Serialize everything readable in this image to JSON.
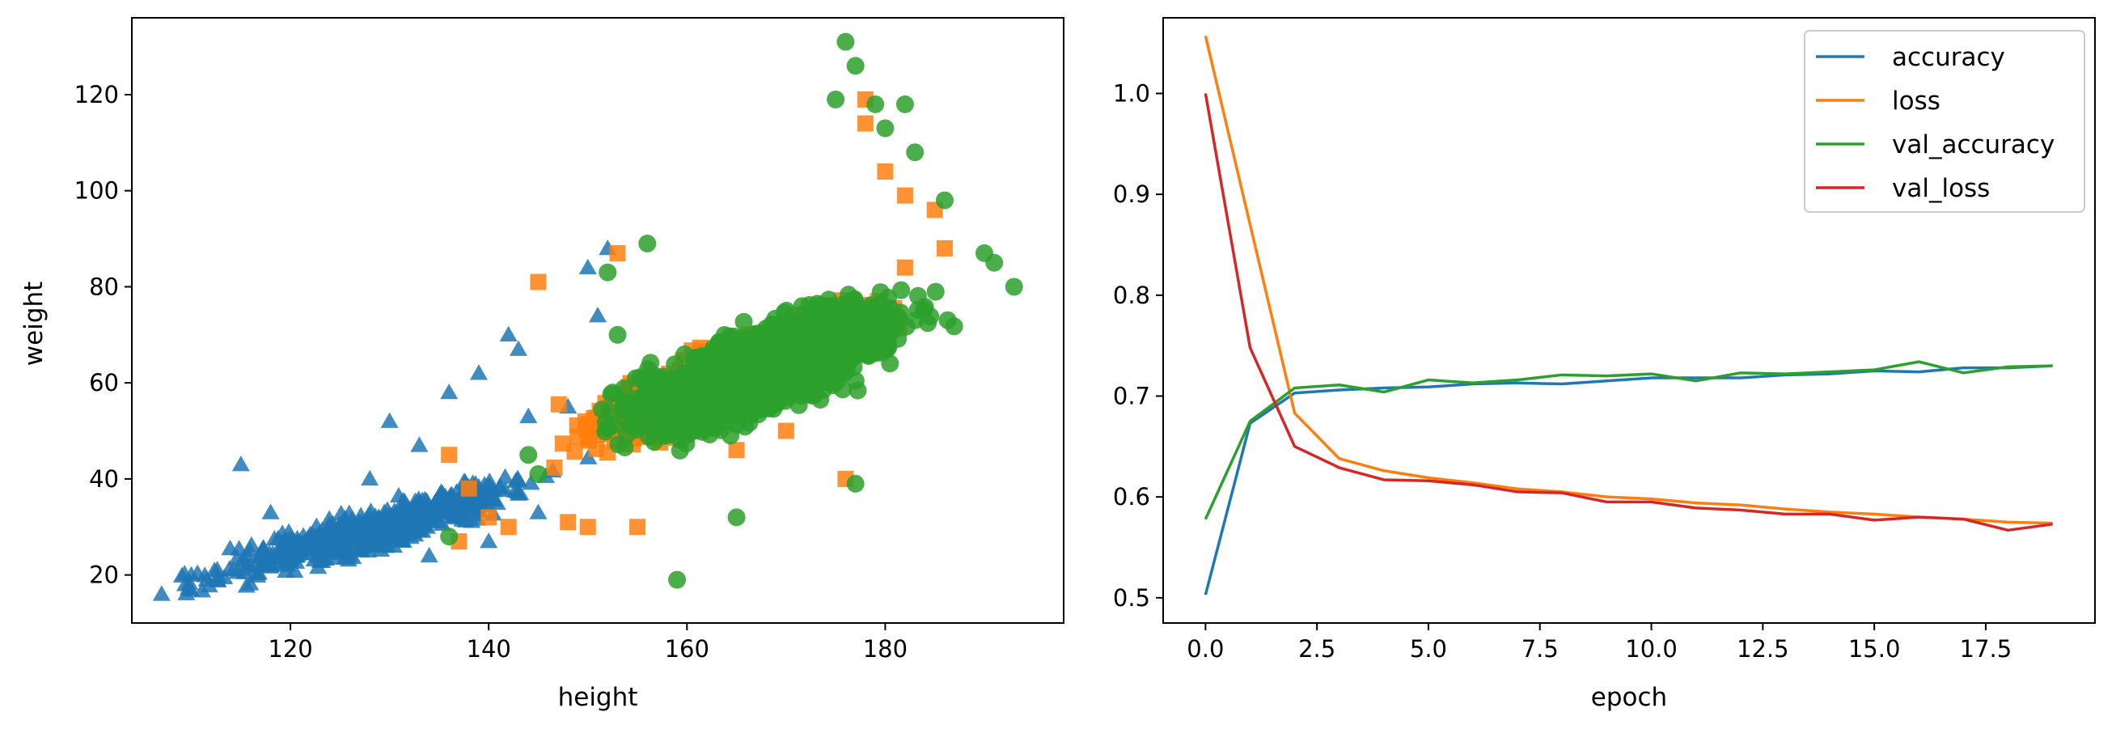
{
  "chart_data": [
    {
      "type": "scatter",
      "xlabel": "height",
      "ylabel": "weight",
      "xlim": [
        104,
        198
      ],
      "ylim": [
        10,
        136
      ],
      "xticks": [
        120,
        140,
        160,
        180
      ],
      "yticks": [
        20,
        40,
        60,
        80,
        100,
        120
      ],
      "xtick_labels": [
        "120",
        "140",
        "160",
        "180"
      ],
      "ytick_labels": [
        "20",
        "40",
        "60",
        "80",
        "100",
        "120"
      ],
      "grid": false,
      "legend": null,
      "series": [
        {
          "marker": "triangle",
          "color": "#1f77b4",
          "distribution": {
            "x_range": [
              107,
              160
            ],
            "trend": [
              [
                108,
                17
              ],
              [
                120,
                25
              ],
              [
                130,
                30
              ],
              [
                140,
                37
              ],
              [
                150,
                44
              ],
              [
                158,
                50
              ]
            ],
            "spread": 5,
            "count": 650
          },
          "outliers": [
            [
              107,
              16
            ],
            [
              110,
              20
            ],
            [
              115,
              43
            ],
            [
              118,
              33
            ],
            [
              128,
              40
            ],
            [
              130,
              52
            ],
            [
              133,
              47
            ],
            [
              136,
              58
            ],
            [
              139,
              62
            ],
            [
              142,
              70
            ],
            [
              143,
              67
            ],
            [
              144,
              53
            ],
            [
              148,
              55
            ],
            [
              150,
              84
            ],
            [
              152,
              88
            ],
            [
              151,
              74
            ],
            [
              140,
              27
            ],
            [
              145,
              33
            ],
            [
              134,
              24
            ]
          ]
        },
        {
          "marker": "square",
          "color": "#ff7f0e",
          "distribution": {
            "x_range": [
              142,
              186
            ],
            "trend": [
              [
                145,
                46
              ],
              [
                155,
                54
              ],
              [
                165,
                62
              ],
              [
                175,
                71
              ],
              [
                184,
                80
              ]
            ],
            "spread": 8,
            "count": 600
          },
          "outliers": [
            [
              145,
              81
            ],
            [
              153,
              87
            ],
            [
              136,
              45
            ],
            [
              137,
              27
            ],
            [
              138,
              38
            ],
            [
              140,
              32
            ],
            [
              142,
              30
            ],
            [
              148,
              31
            ],
            [
              150,
              30
            ],
            [
              155,
              30
            ],
            [
              178,
              119
            ],
            [
              178,
              114
            ],
            [
              180,
              104
            ],
            [
              182,
              99
            ],
            [
              185,
              96
            ],
            [
              186,
              88
            ],
            [
              182,
              84
            ],
            [
              176,
              40
            ],
            [
              170,
              50
            ],
            [
              165,
              46
            ]
          ]
        },
        {
          "marker": "circle",
          "color": "#2ca02c",
          "distribution": {
            "x_range": [
              147,
              192
            ],
            "trend": [
              [
                150,
                50
              ],
              [
                160,
                57
              ],
              [
                170,
                65
              ],
              [
                180,
                72
              ],
              [
                188,
                78
              ]
            ],
            "spread": 10,
            "count": 1800
          },
          "outliers": [
            [
              136,
              28
            ],
            [
              159,
              19
            ],
            [
              165,
              32
            ],
            [
              177,
              39
            ],
            [
              176,
              131
            ],
            [
              177,
              126
            ],
            [
              175,
              119
            ],
            [
              179,
              118
            ],
            [
              182,
              118
            ],
            [
              180,
              113
            ],
            [
              183,
              108
            ],
            [
              186,
              98
            ],
            [
              190,
              87
            ],
            [
              193,
              80
            ],
            [
              191,
              85
            ],
            [
              152,
              83
            ],
            [
              156,
              89
            ],
            [
              145,
              41
            ],
            [
              144,
              45
            ],
            [
              153,
              70
            ]
          ]
        }
      ]
    },
    {
      "type": "line",
      "xlabel": "epoch",
      "ylabel": "",
      "xlim": [
        -0.95,
        19.95
      ],
      "ylim": [
        0.475,
        1.075
      ],
      "xticks": [
        0,
        2.5,
        5,
        7.5,
        10,
        12.5,
        15,
        17.5
      ],
      "yticks": [
        0.5,
        0.6,
        0.7,
        0.8,
        0.9,
        1.0
      ],
      "xtick_labels": [
        "0.0",
        "2.5",
        "5.0",
        "7.5",
        "10.0",
        "12.5",
        "15.0",
        "17.5"
      ],
      "ytick_labels": [
        "0.5",
        "0.6",
        "0.7",
        "0.8",
        "0.9",
        "1.0"
      ],
      "grid": false,
      "legend_position": "top-right",
      "x": [
        0,
        1,
        2,
        3,
        4,
        5,
        6,
        7,
        8,
        9,
        10,
        11,
        12,
        13,
        14,
        15,
        16,
        17,
        18,
        19
      ],
      "series": [
        {
          "name": "accuracy",
          "color": "#1f77b4",
          "values": [
            0.503,
            0.673,
            0.703,
            0.706,
            0.708,
            0.709,
            0.712,
            0.713,
            0.712,
            0.715,
            0.718,
            0.718,
            0.718,
            0.721,
            0.722,
            0.725,
            0.724,
            0.728,
            0.728,
            0.73
          ]
        },
        {
          "name": "loss",
          "color": "#ff7f0e",
          "values": [
            1.057,
            0.87,
            0.683,
            0.638,
            0.626,
            0.619,
            0.614,
            0.608,
            0.605,
            0.6,
            0.598,
            0.594,
            0.592,
            0.588,
            0.585,
            0.583,
            0.58,
            0.578,
            0.575,
            0.574
          ]
        },
        {
          "name": "val_accuracy",
          "color": "#2ca02c",
          "values": [
            0.578,
            0.675,
            0.708,
            0.711,
            0.704,
            0.716,
            0.713,
            0.716,
            0.721,
            0.72,
            0.722,
            0.715,
            0.723,
            0.722,
            0.724,
            0.726,
            0.734,
            0.723,
            0.729,
            0.73
          ]
        },
        {
          "name": "val_loss",
          "color": "#d62728",
          "values": [
            1.0,
            0.748,
            0.65,
            0.629,
            0.617,
            0.616,
            0.612,
            0.605,
            0.604,
            0.595,
            0.595,
            0.589,
            0.587,
            0.583,
            0.583,
            0.577,
            0.58,
            0.578,
            0.567,
            0.573
          ]
        }
      ]
    }
  ]
}
